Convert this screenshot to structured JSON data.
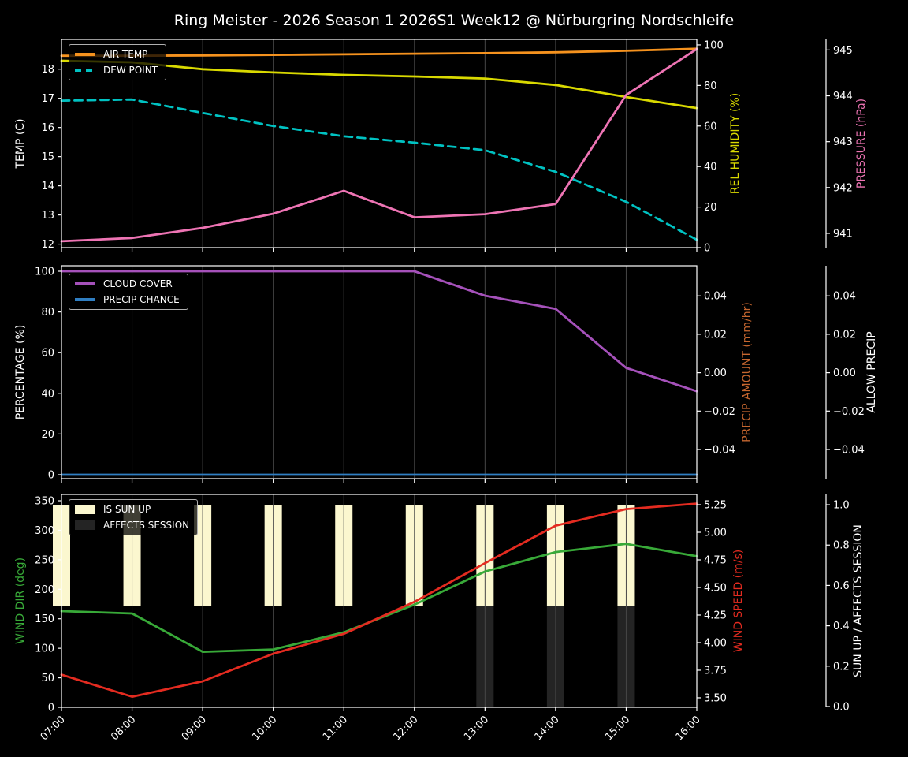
{
  "title": "Ring Meister - 2026 Season 1 2026S1 Week12 @ Nürburgring Nordschleife",
  "x_labels": [
    "07:00",
    "08:00",
    "09:00",
    "10:00",
    "11:00",
    "12:00",
    "13:00",
    "14:00",
    "15:00",
    "16:00"
  ],
  "colors": {
    "background": "#000000",
    "text": "#ffffff",
    "grid": "#474747",
    "air_temp": "#f5921e",
    "dew_point": "#00c2c2",
    "rel_humidity": "#d9d900",
    "pressure": "#ee74b4",
    "cloud_cover": "#a551ba",
    "precip_chance": "#2f7ec2",
    "precip_amount": "#c5662f",
    "wind_dir": "#38a938",
    "wind_speed": "#e42b20",
    "sun_up_bar": "#fbf7cf",
    "affects_session_bar": "#242424"
  },
  "chart_data": [
    {
      "type": "line",
      "name": "temperature",
      "x": [
        "07:00",
        "08:00",
        "09:00",
        "10:00",
        "11:00",
        "12:00",
        "13:00",
        "14:00",
        "15:00",
        "16:00"
      ],
      "axes": {
        "left": {
          "label": "TEMP (C)",
          "color": "#ffffff",
          "range": [
            11.88,
            19.02
          ],
          "tick_values": [
            12,
            13,
            14,
            15,
            16,
            17,
            18
          ],
          "tick_labels": [
            "12",
            "13",
            "14",
            "15",
            "16",
            "17",
            "18"
          ]
        },
        "right1": {
          "label": "REL HUMIDITY (%)",
          "color": "#d9d900",
          "range": [
            0,
            102.7
          ],
          "tick_values": [
            0,
            20,
            40,
            60,
            80,
            100
          ],
          "tick_labels": [
            "0",
            "20",
            "40",
            "60",
            "80",
            "100"
          ]
        },
        "right2": {
          "label": "PRESSURE (hPa)",
          "color": "#ee74b4",
          "range": [
            940.69,
            945.23
          ],
          "tick_values": [
            941,
            942,
            943,
            944,
            945
          ],
          "tick_labels": [
            "941",
            "942",
            "943",
            "944",
            "945"
          ]
        }
      },
      "series": [
        {
          "name": "AIR TEMP",
          "type": "line",
          "style": "solid",
          "axis": "left",
          "color": "#f5921e",
          "values": [
            18.46,
            18.46,
            18.47,
            18.49,
            18.51,
            18.53,
            18.55,
            18.58,
            18.63,
            18.7
          ]
        },
        {
          "name": "DEW POINT",
          "type": "line",
          "style": "dashed",
          "axis": "left",
          "color": "#00c2c2",
          "values": [
            16.92,
            16.96,
            16.5,
            16.05,
            15.7,
            15.48,
            15.22,
            14.48,
            13.45,
            12.15
          ]
        },
        {
          "name": "REL HUMIDITY",
          "type": "line",
          "style": "solid",
          "axis": "right1",
          "color": "#d9d900",
          "values": [
            92.2,
            91.4,
            88.0,
            86.4,
            85.2,
            84.4,
            83.4,
            80.2,
            74.3,
            68.8
          ]
        },
        {
          "name": "PRESSURE",
          "type": "line",
          "style": "solid",
          "axis": "right2",
          "color": "#ee74b4",
          "values": [
            940.83,
            940.9,
            941.12,
            941.43,
            941.93,
            941.35,
            941.42,
            941.64,
            944.02,
            945.02
          ]
        }
      ],
      "legend": [
        {
          "label": "AIR TEMP",
          "swatch": "line",
          "color": "#f5921e"
        },
        {
          "label": "DEW POINT",
          "swatch": "dash",
          "color": "#00c2c2"
        }
      ]
    },
    {
      "type": "line",
      "name": "cloud-precip",
      "x": [
        "07:00",
        "08:00",
        "09:00",
        "10:00",
        "11:00",
        "12:00",
        "13:00",
        "14:00",
        "15:00",
        "16:00"
      ],
      "axes": {
        "left": {
          "label": "PERCENTAGE (%)",
          "color": "#ffffff",
          "range": [
            -1.94,
            102.71
          ],
          "tick_values": [
            0,
            20,
            40,
            60,
            80,
            100
          ],
          "tick_labels": [
            "0",
            "20",
            "40",
            "60",
            "80",
            "100"
          ]
        },
        "right1": {
          "label": "PRECIP AMOUNT (mm/hr)",
          "color": "#c5662f",
          "range": [
            -0.0552,
            0.0557
          ],
          "tick_values": [
            0.04,
            0.02,
            0,
            -0.02,
            -0.04
          ],
          "tick_labels": [
            "0.04",
            "0.02",
            "0.00",
            "−0.02",
            "−0.04"
          ]
        },
        "right2": {
          "label": "ALLOW PRECIP",
          "color": "#ffffff",
          "range": [
            -0.0552,
            0.0557
          ],
          "tick_values": [
            0.04,
            0.02,
            0,
            -0.02,
            -0.04
          ],
          "tick_labels": [
            "0.04",
            "0.02",
            "0.00",
            "−0.02",
            "−0.04"
          ]
        }
      },
      "series": [
        {
          "name": "CLOUD COVER",
          "type": "line",
          "style": "solid",
          "axis": "left",
          "color": "#a551ba",
          "values": [
            100,
            100,
            100,
            100,
            100,
            100,
            88,
            81.5,
            52.5,
            41
          ]
        },
        {
          "name": "PRECIP CHANCE",
          "type": "line",
          "style": "solid",
          "axis": "left",
          "color": "#2f7ec2",
          "values": [
            0,
            0,
            0,
            0,
            0,
            0,
            0,
            0,
            0,
            0
          ]
        }
      ],
      "legend": [
        {
          "label": "CLOUD COVER",
          "swatch": "line",
          "color": "#a551ba"
        },
        {
          "label": "PRECIP CHANCE",
          "swatch": "line",
          "color": "#2f7ec2"
        }
      ]
    },
    {
      "type": "line",
      "name": "wind-sun",
      "x": [
        "07:00",
        "08:00",
        "09:00",
        "10:00",
        "11:00",
        "12:00",
        "13:00",
        "14:00",
        "15:00",
        "16:00"
      ],
      "axes": {
        "left": {
          "label": "WIND DIR (deg)",
          "color": "#38a938",
          "range": [
            0,
            360.7
          ],
          "tick_values": [
            0,
            50,
            100,
            150,
            200,
            250,
            300,
            350
          ],
          "tick_labels": [
            "0",
            "50",
            "100",
            "150",
            "200",
            "250",
            "300",
            "350"
          ]
        },
        "right1": {
          "label": "WIND SPEED (m/s)",
          "color": "#e42b20",
          "range": [
            3.414,
            5.343
          ],
          "tick_values": [
            3.5,
            3.75,
            4,
            4.25,
            4.5,
            4.75,
            5,
            5.25
          ],
          "tick_labels": [
            "3.50",
            "3.75",
            "4.00",
            "4.25",
            "4.50",
            "4.75",
            "5.00",
            "5.25"
          ]
        },
        "right2": {
          "label": "SUN UP / AFFECTS SESSION",
          "color": "#ffffff",
          "range": [
            -0.004,
            1.051
          ],
          "tick_values": [
            0,
            0.2,
            0.4,
            0.6,
            0.8,
            1.0
          ],
          "tick_labels": [
            "0.0",
            "0.2",
            "0.4",
            "0.6",
            "0.8",
            "1.0"
          ]
        }
      },
      "series": [
        {
          "name": "IS SUN UP",
          "type": "bar",
          "axis": "right2",
          "color": "#fbf7cf",
          "bar_bottom": 0.5,
          "bar_top": 1.0,
          "values": [
            1,
            1,
            1,
            1,
            1,
            1,
            1,
            1,
            1,
            0
          ]
        },
        {
          "name": "AFFECTS SESSION",
          "type": "bar",
          "axis": "right2",
          "color": "#242424",
          "bar_bottom": 0.0,
          "bar_top": 0.5,
          "values": [
            0,
            0,
            0,
            0,
            0,
            0,
            1,
            1,
            1,
            0
          ]
        },
        {
          "name": "WIND DIR",
          "type": "line",
          "style": "solid",
          "axis": "left",
          "color": "#38a938",
          "values": [
            163,
            159,
            94,
            98,
            127,
            174,
            230,
            263,
            277,
            256
          ]
        },
        {
          "name": "WIND SPEED",
          "type": "line",
          "style": "solid",
          "axis": "right1",
          "color": "#e42b20",
          "values": [
            3.71,
            3.51,
            3.65,
            3.9,
            4.08,
            4.37,
            4.72,
            5.06,
            5.21,
            5.26
          ]
        }
      ],
      "legend": [
        {
          "label": "IS SUN UP",
          "swatch": "patch",
          "color": "#fbf7cf"
        },
        {
          "label": "AFFECTS SESSION",
          "swatch": "patch",
          "color": "#242424"
        }
      ]
    }
  ]
}
